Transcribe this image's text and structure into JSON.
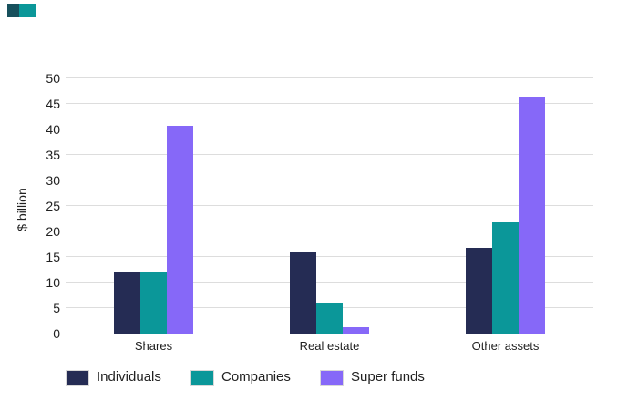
{
  "brand_mark": {
    "dark_color": "#17505C",
    "teal_color": "#0B9799"
  },
  "chart_data": {
    "type": "bar",
    "title": "",
    "ylabel": "$ billion",
    "categories": [
      "Shares",
      "Real estate",
      "Other assets"
    ],
    "series": [
      {
        "name": "Individuals",
        "color": "#252C54",
        "values": [
          12.2,
          16.1,
          16.7
        ]
      },
      {
        "name": "Companies",
        "color": "#0B9799",
        "values": [
          11.9,
          5.8,
          21.7
        ]
      },
      {
        "name": "Super funds",
        "color": "#8668F8",
        "values": [
          40.7,
          1.3,
          46.4
        ]
      }
    ],
    "ylim": [
      0,
      50
    ],
    "ytick_step": 5,
    "ytick_labels": [
      "0",
      "5",
      "10",
      "15",
      "20",
      "25",
      "30",
      "35",
      "40",
      "45",
      "50"
    ],
    "grid": true,
    "gridline_color": "#DDDDDD",
    "legend_position": "bottom",
    "background_color": "#FFFFFF",
    "text_color": "#212121"
  }
}
